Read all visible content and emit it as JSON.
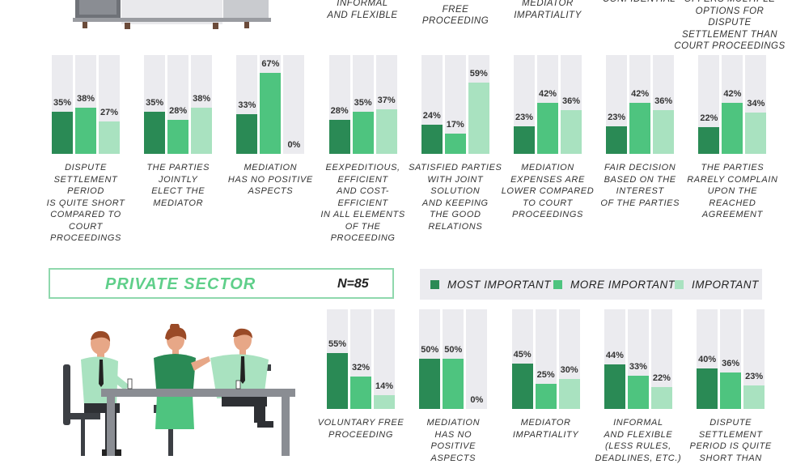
{
  "colors": {
    "most": "#2a8a55",
    "more": "#4ec47f",
    "important": "#a9e2c0",
    "track": "#ebebef"
  },
  "top_labels": [
    {
      "text": "INFORMAL\nAND FLEXIBLE",
      "center": 448,
      "top": -3
    },
    {
      "text": "VOLUNTARY\nFREE\nPROCEEDING",
      "center": 563,
      "top": -10
    },
    {
      "text": "MEDIATOR\nIMPARTIALITY",
      "center": 677,
      "top": -3
    },
    {
      "text": "CONFIDENTIAL",
      "center": 790,
      "top": -8
    },
    {
      "text": "OFFERS MULTIPLE\nOPTIONS FOR DISPUTE\nSETTLEMENT THAN\nCOURT PROCEEDINGS",
      "center": 902,
      "top": -8
    }
  ],
  "section": {
    "title": "PRIVATE SECTOR",
    "n": "N=85"
  },
  "legend": [
    "MOST IMPORTANT",
    "MORE IMPORTANT",
    "IMPORTANT"
  ],
  "chart_data": [
    {
      "type": "bar",
      "series_names": [
        "MOST IMPORTANT",
        "MORE IMPORTANT",
        "IMPORTANT"
      ],
      "groups": [
        {
          "label": "DISPUTE\nSETTLEMENT\nPERIOD\nIS QUITE SHORT\nCOMPARED TO COURT\nPROCEEDINGS",
          "values": [
            35,
            38,
            27
          ],
          "labels": [
            "35%",
            "38%",
            "27%"
          ]
        },
        {
          "label": "THE PARTIES\nJOINTLY\nELECT THE\nMEDIATOR",
          "values": [
            35,
            28,
            38
          ],
          "labels": [
            "35%",
            "28%",
            "38%"
          ]
        },
        {
          "label": "MEDIATION\nHAS NO POSITIVE\nASPECTS",
          "values": [
            33,
            67,
            0
          ],
          "labels": [
            "33%",
            "67%",
            "0%"
          ]
        },
        {
          "label": "EEXPEDITIOUS,\nEFFICIENT\nAND COST-EFFICIENT\nIN ALL ELEMENTS\nOF THE\nPROCEEDING",
          "values": [
            28,
            35,
            37
          ],
          "labels": [
            "28%",
            "35%",
            "37%"
          ]
        },
        {
          "label": "SATISFIED PARTIES\nWITH JOINT\nSOLUTION\nAND KEEPING\nTHE GOOD\nRELATIONS",
          "values": [
            24,
            17,
            59
          ],
          "labels": [
            "24%",
            "17%",
            "59%"
          ]
        },
        {
          "label": "MEDIATION\nEXPENSES ARE\nLOWER COMPARED\nTO COURT\nPROCEEDINGS",
          "values": [
            23,
            42,
            36
          ],
          "labels": [
            "23%",
            "42%",
            "36%"
          ]
        },
        {
          "label": "FAIR DECISION\nBASED ON THE\nINTEREST\nOF THE PARTIES",
          "values": [
            23,
            42,
            36
          ],
          "labels": [
            "23%",
            "42%",
            "36%"
          ]
        },
        {
          "label": "THE PARTIES\nRARELY COMPLAIN\nUPON THE REACHED\nAGREEMENT",
          "values": [
            22,
            42,
            34
          ],
          "labels": [
            "22%",
            "42%",
            "34%"
          ]
        }
      ]
    },
    {
      "type": "bar",
      "series_names": [
        "MOST IMPORTANT",
        "MORE IMPORTANT",
        "IMPORTANT"
      ],
      "groups": [
        {
          "label": "VOLUNTARY FREE\nPROCEEDING",
          "values": [
            55,
            32,
            14
          ],
          "labels": [
            "55%",
            "32%",
            "14%"
          ]
        },
        {
          "label": "MEDIATION\nHAS NO\nPOSITIVE\nASPECTS",
          "values": [
            50,
            50,
            0
          ],
          "labels": [
            "50%",
            "50%",
            "0%"
          ]
        },
        {
          "label": "MEDIATOR\nIMPARTIALITY",
          "values": [
            45,
            25,
            30
          ],
          "labels": [
            "45%",
            "25%",
            "30%"
          ]
        },
        {
          "label": "INFORMAL\nAND FLEXIBLE\n(LESS RULES,\nDEADLINES, ETC.)",
          "values": [
            44,
            33,
            22
          ],
          "labels": [
            "44%",
            "33%",
            "22%"
          ]
        },
        {
          "label": "DISPUTE\nSETTLEMENT\nPERIOD IS QUITE\nSHORT THAN",
          "values": [
            40,
            36,
            23
          ],
          "labels": [
            "40%",
            "36%",
            "23%"
          ]
        }
      ]
    }
  ]
}
